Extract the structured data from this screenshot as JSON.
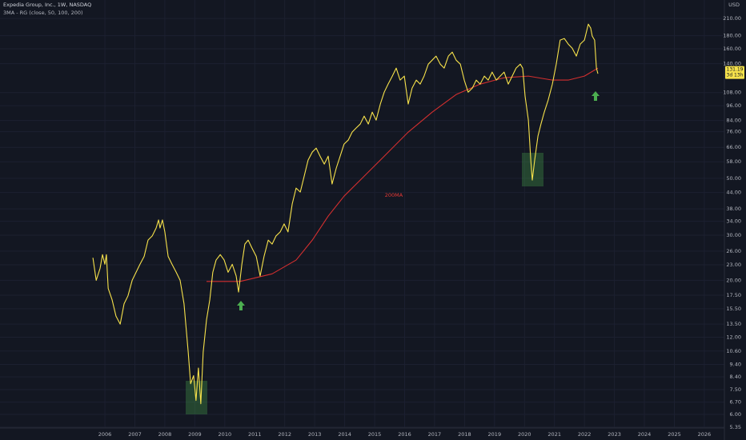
{
  "chart_data": {
    "type": "line",
    "title": "Expedia Group, Inc., 1W, NASDAQ",
    "subtitle": "3MA - RG (close, 50, 100, 200)",
    "y_label": "USD",
    "log_scale": true,
    "grid": true,
    "xlim": [
      2002.5,
      2026.67
    ],
    "xticks": [
      2006,
      2007,
      2008,
      2009,
      2010,
      2011,
      2012,
      2013,
      2014,
      2015,
      2016,
      2017,
      2018,
      2019,
      2020,
      2021,
      2022,
      2023,
      2024,
      2025,
      2026
    ],
    "ylim": [
      5.31,
      248
    ],
    "yticks": [
      {
        "value": 210,
        "label": "210.00"
      },
      {
        "value": 180,
        "label": "180.00"
      },
      {
        "value": 160,
        "label": "160.00"
      },
      {
        "value": 140,
        "label": "140.00"
      },
      {
        "value": 108,
        "label": "108.00"
      },
      {
        "value": 96,
        "label": "96.00"
      },
      {
        "value": 84,
        "label": "84.00"
      },
      {
        "value": 76,
        "label": "76.00"
      },
      {
        "value": 66,
        "label": "66.00"
      },
      {
        "value": 58,
        "label": "58.00"
      },
      {
        "value": 50,
        "label": "50.00"
      },
      {
        "value": 44,
        "label": "44.00"
      },
      {
        "value": 38,
        "label": "38.00"
      },
      {
        "value": 34,
        "label": "34.00"
      },
      {
        "value": 30,
        "label": "30.00"
      },
      {
        "value": 26,
        "label": "26.00"
      },
      {
        "value": 23,
        "label": "23.00"
      },
      {
        "value": 20,
        "label": "20.00"
      },
      {
        "value": 17.5,
        "label": "17.50"
      },
      {
        "value": 15.5,
        "label": "15.50"
      },
      {
        "value": 13.5,
        "label": "13.50"
      },
      {
        "value": 12,
        "label": "12.00"
      },
      {
        "value": 10.6,
        "label": "10.60"
      },
      {
        "value": 9.4,
        "label": "9.40"
      },
      {
        "value": 8.4,
        "label": "8.40"
      },
      {
        "value": 7.5,
        "label": "7.50"
      },
      {
        "value": 6.7,
        "label": "6.70"
      },
      {
        "value": 6,
        "label": "6.00"
      },
      {
        "value": 5.35,
        "label": "5.35"
      }
    ],
    "series": [
      {
        "color": "#f7e24b",
        "x": [
          2005.6,
          2005.71,
          2005.84,
          2005.92,
          2006.0,
          2006.05,
          2006.11,
          2006.24,
          2006.37,
          2006.51,
          2006.64,
          2006.77,
          2006.91,
          2007.04,
          2007.17,
          2007.31,
          2007.44,
          2007.58,
          2007.71,
          2007.79,
          2007.84,
          2007.92,
          2008.0,
          2008.11,
          2008.24,
          2008.38,
          2008.51,
          2008.64,
          2008.78,
          2008.86,
          2008.96,
          2009.04,
          2009.12,
          2009.2,
          2009.28,
          2009.39,
          2009.5,
          2009.6,
          2009.71,
          2009.85,
          2009.98,
          2010.11,
          2010.25,
          2010.38,
          2010.46,
          2010.57,
          2010.67,
          2010.78,
          2010.91,
          2011.05,
          2011.18,
          2011.31,
          2011.45,
          2011.58,
          2011.71,
          2011.85,
          2011.98,
          2012.11,
          2012.25,
          2012.38,
          2012.52,
          2012.65,
          2012.78,
          2012.92,
          2013.05,
          2013.18,
          2013.32,
          2013.45,
          2013.58,
          2013.72,
          2013.85,
          2013.98,
          2014.12,
          2014.25,
          2014.38,
          2014.52,
          2014.65,
          2014.79,
          2014.92,
          2015.05,
          2015.19,
          2015.32,
          2015.45,
          2015.59,
          2015.72,
          2015.85,
          2015.99,
          2016.12,
          2016.25,
          2016.39,
          2016.52,
          2016.65,
          2016.79,
          2016.92,
          2017.05,
          2017.19,
          2017.32,
          2017.46,
          2017.59,
          2017.72,
          2017.86,
          2017.99,
          2018.12,
          2018.26,
          2018.39,
          2018.52,
          2018.66,
          2018.79,
          2018.92,
          2019.06,
          2019.19,
          2019.32,
          2019.46,
          2019.59,
          2019.72,
          2019.86,
          2019.94,
          2020.02,
          2020.13,
          2020.21,
          2020.26,
          2020.34,
          2020.45,
          2020.55,
          2020.66,
          2020.79,
          2020.93,
          2021.06,
          2021.19,
          2021.33,
          2021.46,
          2021.59,
          2021.73,
          2021.86,
          2022.0,
          2022.13,
          2022.21,
          2022.26,
          2022.34,
          2022.4,
          2022.45
        ],
        "values": [
          24.5,
          20,
          22.3,
          25.2,
          23.1,
          25.2,
          18.6,
          16.8,
          14.5,
          13.5,
          16.2,
          17.4,
          20,
          21.5,
          23.1,
          24.8,
          28.7,
          29.8,
          32,
          34.4,
          32,
          34.4,
          30.9,
          24.8,
          23.1,
          21.5,
          20,
          16.2,
          10.5,
          7.9,
          8.5,
          6.8,
          9.1,
          6.6,
          10.5,
          14,
          16.8,
          21.5,
          24,
          25.2,
          24,
          21.5,
          23.1,
          20.8,
          18,
          23.1,
          27.7,
          28.7,
          26.7,
          24.8,
          20.8,
          24.8,
          28.7,
          27.7,
          29.8,
          30.9,
          33.2,
          30.9,
          39.7,
          45.8,
          44.2,
          51,
          58.9,
          63.3,
          65.6,
          61,
          56.8,
          61,
          47.5,
          54.8,
          61,
          68,
          70.5,
          75.7,
          78.5,
          81.4,
          87.4,
          81.4,
          90.6,
          84.3,
          97.4,
          108.4,
          116.5,
          125.2,
          134.5,
          120.8,
          125.2,
          97.4,
          112.4,
          120.8,
          116.5,
          125.2,
          139.4,
          144.5,
          149.8,
          139.4,
          134.5,
          149.8,
          155.3,
          144.5,
          139.4,
          120.8,
          108.4,
          112.4,
          120.8,
          116.5,
          125.2,
          120.8,
          129.8,
          120.8,
          125.2,
          129.8,
          116.5,
          125.2,
          134.5,
          139.4,
          134.5,
          104.6,
          84.3,
          58.9,
          49.2,
          58.9,
          73.1,
          81.4,
          90.6,
          100.9,
          116.5,
          139.4,
          173,
          175.5,
          166.9,
          161,
          149.8,
          166.9,
          173,
          199.7,
          192.6,
          179.3,
          173,
          134.5,
          127.9
        ]
      },
      {
        "color": "#d32f2f",
        "x": [
          2009.39,
          2010.51,
          2011.58,
          2012.38,
          2012.92,
          2013.45,
          2013.98,
          2014.52,
          2015.32,
          2016.12,
          2016.92,
          2017.72,
          2018.52,
          2019.32,
          2020.13,
          2020.93,
          2021.46,
          2022.0,
          2022.45
        ],
        "values": [
          19.8,
          19.8,
          21.2,
          24,
          28.7,
          35.6,
          42.6,
          49.2,
          61,
          75.7,
          90.6,
          106.1,
          116.5,
          123.4,
          125.2,
          120.8,
          120.8,
          125.2,
          134.5
        ]
      }
    ],
    "annotations": [
      "200MA"
    ],
    "last_price": 131.19,
    "countdown": "3d 13h"
  }
}
